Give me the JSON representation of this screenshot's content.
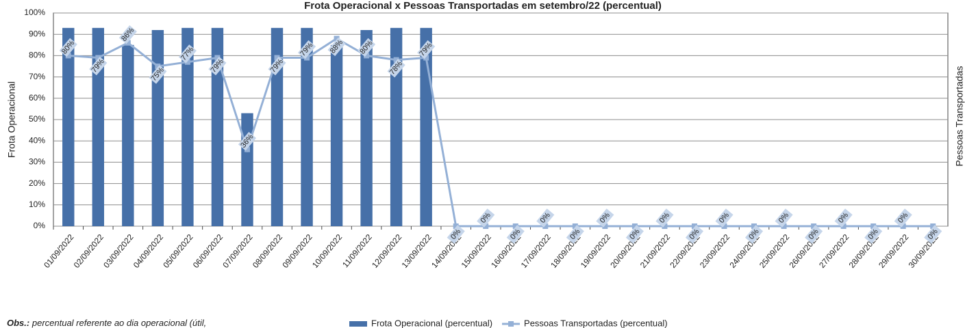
{
  "chart_data": {
    "type": "bar_line",
    "title": "Frota Operacional x Pessoas Transportadas em setembro/22 (percentual)",
    "y_label": "Frota Operacional",
    "y2_label": "Pessoas Transportadas",
    "note_label": "Obs.:",
    "note": "percentual referente ao dia operacional (útil,",
    "categories": [
      "01/09/2022",
      "02/09/2022",
      "03/09/2022",
      "04/09/2022",
      "05/09/2022",
      "06/09/2022",
      "07/09/2022",
      "08/09/2022",
      "09/09/2022",
      "10/09/2022",
      "11/09/2022",
      "12/09/2022",
      "13/09/2022",
      "14/09/2022",
      "15/09/2022",
      "16/09/2022",
      "17/09/2022",
      "18/09/2022",
      "19/09/2022",
      "20/09/2022",
      "21/09/2022",
      "22/09/2022",
      "23/09/2022",
      "24/09/2022",
      "25/09/2022",
      "26/09/2022",
      "27/09/2022",
      "28/09/2022",
      "29/09/2022",
      "30/09/2022"
    ],
    "series": [
      {
        "name": "Frota Operacional (percentual)",
        "kind": "bar",
        "color": "#4670a8",
        "values": [
          93,
          93,
          85,
          92,
          93,
          93,
          53,
          93,
          93,
          85,
          92,
          93,
          93,
          0,
          0,
          0,
          0,
          0,
          0,
          0,
          0,
          0,
          0,
          0,
          0,
          0,
          0,
          0,
          0,
          0
        ]
      },
      {
        "name": "Pessoas Transportadas (percentual)",
        "kind": "line",
        "color": "#94b0d6",
        "values": [
          80,
          79,
          86,
          75,
          77,
          79,
          36,
          79,
          79,
          88,
          80,
          78,
          79,
          0,
          0,
          0,
          0,
          0,
          0,
          0,
          0,
          0,
          0,
          0,
          0,
          0,
          0,
          0,
          0,
          0
        ],
        "value_labels": [
          "80%",
          "79%",
          "86%",
          "75%",
          "77%",
          "79%",
          "36%",
          "79%",
          "79%",
          "88%",
          "80%",
          "78%",
          "79%",
          "0%",
          "0%",
          "0%",
          "0%",
          "0%",
          "0%",
          "0%",
          "0%",
          "0%",
          "0%",
          "0%",
          "0%",
          "0%",
          "0%",
          "0%",
          "0%",
          "0%"
        ]
      }
    ],
    "ylim": [
      0,
      100
    ],
    "yticks": [
      {
        "value": 0,
        "label": "0%"
      },
      {
        "value": 10,
        "label": "10%"
      },
      {
        "value": 20,
        "label": "20%"
      },
      {
        "value": 30,
        "label": "30%"
      },
      {
        "value": 40,
        "label": "40%"
      },
      {
        "value": 50,
        "label": "50%"
      },
      {
        "value": 60,
        "label": "60%"
      },
      {
        "value": 70,
        "label": "70%"
      },
      {
        "value": 80,
        "label": "80%"
      },
      {
        "value": 90,
        "label": "90%"
      },
      {
        "value": 100,
        "label": "100%"
      }
    ],
    "grid": true,
    "legend": "bottom"
  }
}
